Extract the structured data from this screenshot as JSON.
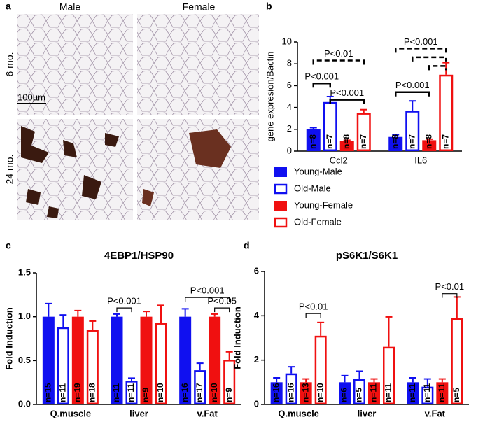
{
  "micrographs": {
    "panel": "a",
    "columns": [
      "Male",
      "Female"
    ],
    "rows": [
      "6 mo.",
      "24 mo."
    ],
    "scale_bar": "100µm"
  },
  "chart_data": [
    {
      "type": "bar",
      "panel": "b",
      "y_label": "gene expresion/Bactin",
      "categories": [
        "Ccl2",
        "IL6"
      ],
      "ylim": [
        0,
        10
      ],
      "yticks": [
        0,
        2,
        4,
        6,
        8,
        10
      ],
      "legend": "bottom",
      "series": [
        {
          "name": "Young-Male",
          "color": "#1010f0",
          "filled": true,
          "values": [
            2.0,
            1.3
          ],
          "errors": [
            0.15,
            0.2
          ],
          "n_labels": [
            "n=8",
            "n=8"
          ]
        },
        {
          "name": "Old-Male",
          "color": "#1010f0",
          "filled": false,
          "values": [
            4.5,
            3.7
          ],
          "errors": [
            0.5,
            0.9
          ],
          "n_labels": [
            "n=7",
            "n=7"
          ]
        },
        {
          "name": "Young-Female",
          "color": "#f01010",
          "filled": true,
          "values": [
            0.9,
            1.0
          ],
          "errors": [
            0.1,
            0.1
          ],
          "n_labels": [
            "n=8",
            "n=8"
          ]
        },
        {
          "name": "Old-Female",
          "color": "#f01010",
          "filled": false,
          "values": [
            3.5,
            7.0
          ],
          "errors": [
            0.3,
            1.1
          ],
          "n_labels": [
            "n=7",
            "n=7"
          ]
        }
      ],
      "annotations": [
        "P<0.01",
        "P<0.001",
        "P<0.001",
        "P<0.001",
        "P<0.001"
      ]
    },
    {
      "type": "bar",
      "panel": "c",
      "title": "4EBP1/HSP90",
      "y_label": "Fold Induction",
      "categories": [
        "Q.muscle",
        "liver",
        "v.Fat"
      ],
      "ylim": [
        0,
        1.5
      ],
      "yticks": [
        {
          "value": 0,
          "label": "0.0"
        },
        {
          "value": 0.5,
          "label": "0.5"
        },
        {
          "value": 1,
          "label": "1.0"
        },
        {
          "value": 1.5,
          "label": "1.5"
        }
      ],
      "series": [
        {
          "color": "#1010f0",
          "filled": true,
          "values": [
            1.0,
            1.0,
            1.0
          ],
          "errors": [
            0.15,
            0.03,
            0.09
          ],
          "n_labels": [
            "n=15",
            "n=11",
            "n=16"
          ]
        },
        {
          "color": "#1010f0",
          "filled": false,
          "values": [
            0.88,
            0.27,
            0.39
          ],
          "errors": [
            0.14,
            0.03,
            0.08
          ],
          "n_labels": [
            "n=11",
            "n=11",
            "n=17"
          ]
        },
        {
          "color": "#f01010",
          "filled": true,
          "values": [
            1.0,
            1.0,
            1.0
          ],
          "errors": [
            0.07,
            0.06,
            0.03
          ],
          "n_labels": [
            "n=19",
            "n=9",
            "n=10"
          ]
        },
        {
          "color": "#f01010",
          "filled": false,
          "values": [
            0.85,
            0.93,
            0.51
          ],
          "errors": [
            0.1,
            0.2,
            0.09
          ],
          "n_labels": [
            "n=18",
            "n=10",
            "n=9"
          ]
        }
      ],
      "annotations": [
        "P<0.001",
        "P<0.001",
        "P<0.05"
      ]
    },
    {
      "type": "bar",
      "panel": "d",
      "title": "pS6K1/S6K1",
      "y_label": "Fold Induction",
      "categories": [
        "Q.muscle",
        "liver",
        "v.Fat"
      ],
      "ylim": [
        0,
        6
      ],
      "yticks": [
        0,
        2,
        4,
        6
      ],
      "series": [
        {
          "color": "#1010f0",
          "filled": true,
          "values": [
            1.0,
            1.0,
            1.0
          ],
          "errors": [
            0.2,
            0.3,
            0.2
          ],
          "n_labels": [
            "n=16",
            "n=6",
            "n=11"
          ]
        },
        {
          "color": "#1010f0",
          "filled": false,
          "values": [
            1.4,
            1.15,
            0.8
          ],
          "errors": [
            0.3,
            0.35,
            0.35
          ],
          "n_labels": [
            "n=16",
            "n=5",
            "n=11"
          ]
        },
        {
          "color": "#f01010",
          "filled": true,
          "values": [
            1.0,
            1.0,
            1.0
          ],
          "errors": [
            0.15,
            0.15,
            0.15
          ],
          "n_labels": [
            "n=13",
            "n=11",
            "n=11"
          ]
        },
        {
          "color": "#f01010",
          "filled": false,
          "values": [
            3.1,
            2.6,
            3.9
          ],
          "errors": [
            0.6,
            1.35,
            0.95
          ],
          "n_labels": [
            "n=10",
            "n=11",
            "n=5"
          ]
        }
      ],
      "annotations": [
        "P<0.01",
        "P<0.01"
      ]
    }
  ]
}
